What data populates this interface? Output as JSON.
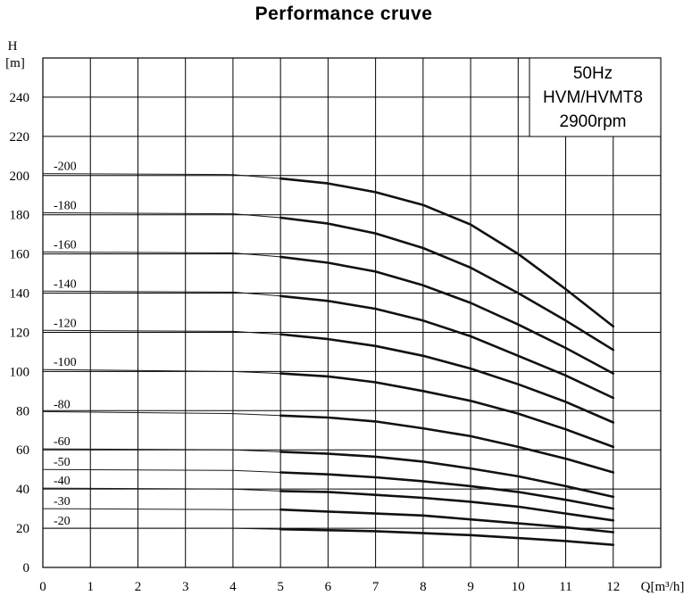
{
  "chart_data": {
    "type": "line",
    "title": "Performance cruve",
    "xlabel": "Q[m³/h]",
    "ylabel_top": "H",
    "ylabel_unit": "[m]",
    "xlim": [
      0,
      13
    ],
    "ylim": [
      0,
      260
    ],
    "xticks": [
      0,
      1,
      2,
      3,
      4,
      5,
      6,
      7,
      8,
      9,
      10,
      11,
      12
    ],
    "yticks": [
      0,
      20,
      40,
      60,
      80,
      100,
      120,
      140,
      160,
      180,
      200,
      220,
      240
    ],
    "legend": [
      "50Hz",
      "HVM/HVMT8",
      "2900rpm"
    ],
    "grid": true,
    "series": [
      {
        "name": "-200",
        "x": [
          0,
          4,
          5,
          6,
          7,
          8,
          9,
          10,
          11,
          12
        ],
        "y": [
          201,
          200.5,
          198.5,
          196,
          191.5,
          185,
          175,
          160,
          142,
          123
        ]
      },
      {
        "name": "-180",
        "x": [
          0,
          4,
          5,
          6,
          7,
          8,
          9,
          10,
          11,
          12
        ],
        "y": [
          181,
          180.5,
          178.5,
          175.5,
          170.5,
          163,
          153,
          140,
          126,
          111
        ]
      },
      {
        "name": "-160",
        "x": [
          0,
          4,
          5,
          6,
          7,
          8,
          9,
          10,
          11,
          12
        ],
        "y": [
          161,
          160.5,
          158.5,
          155.5,
          151,
          144,
          135,
          124,
          112,
          99
        ]
      },
      {
        "name": "-140",
        "x": [
          0,
          4,
          5,
          6,
          7,
          8,
          9,
          10,
          11,
          12
        ],
        "y": [
          141,
          140.5,
          138.5,
          136,
          132,
          126,
          118,
          108,
          98,
          86.5
        ]
      },
      {
        "name": "-120",
        "x": [
          0,
          4,
          5,
          6,
          7,
          8,
          9,
          10,
          11,
          12
        ],
        "y": [
          121,
          120.5,
          119,
          116.5,
          113,
          108,
          101.5,
          93.5,
          84.5,
          74
        ]
      },
      {
        "name": "-100",
        "x": [
          0,
          4,
          5,
          6,
          7,
          8,
          9,
          10,
          11,
          12
        ],
        "y": [
          101,
          100,
          99,
          97.5,
          94.5,
          90,
          85,
          78.5,
          70.5,
          61.5
        ]
      },
      {
        "name": "-80",
        "x": [
          0,
          4,
          5,
          6,
          7,
          8,
          9,
          10,
          11,
          12
        ],
        "y": [
          79.5,
          78.5,
          77.5,
          76.5,
          74.5,
          71,
          67,
          61.5,
          55.5,
          48.5
        ]
      },
      {
        "name": "-60",
        "x": [
          0,
          4,
          5,
          6,
          7,
          8,
          9,
          10,
          11,
          12
        ],
        "y": [
          60.5,
          60,
          59,
          58,
          56.5,
          54,
          50.5,
          46.5,
          41.5,
          36
        ]
      },
      {
        "name": "-50",
        "x": [
          0,
          4,
          5,
          6,
          7,
          8,
          9,
          10,
          11,
          12
        ],
        "y": [
          50,
          49.5,
          48.5,
          47.5,
          46,
          44,
          41.5,
          38.5,
          34.5,
          30
        ]
      },
      {
        "name": "-40",
        "x": [
          0,
          4,
          5,
          6,
          7,
          8,
          9,
          10,
          11,
          12
        ],
        "y": [
          40.5,
          40,
          39,
          38.5,
          37,
          35.5,
          33.5,
          31,
          27.5,
          24
        ]
      },
      {
        "name": "-30",
        "x": [
          0,
          4,
          5,
          6,
          7,
          8,
          9,
          10,
          11,
          12
        ],
        "y": [
          30,
          29.5,
          29.5,
          28.5,
          27.5,
          26.5,
          24.5,
          22.5,
          20.5,
          18
        ]
      },
      {
        "name": "-20",
        "x": [
          0,
          4,
          5,
          6,
          7,
          8,
          9,
          10,
          11,
          12
        ],
        "y": [
          20,
          20,
          19.5,
          19,
          18.5,
          17.5,
          16.5,
          15,
          13.5,
          11.5
        ]
      }
    ]
  }
}
